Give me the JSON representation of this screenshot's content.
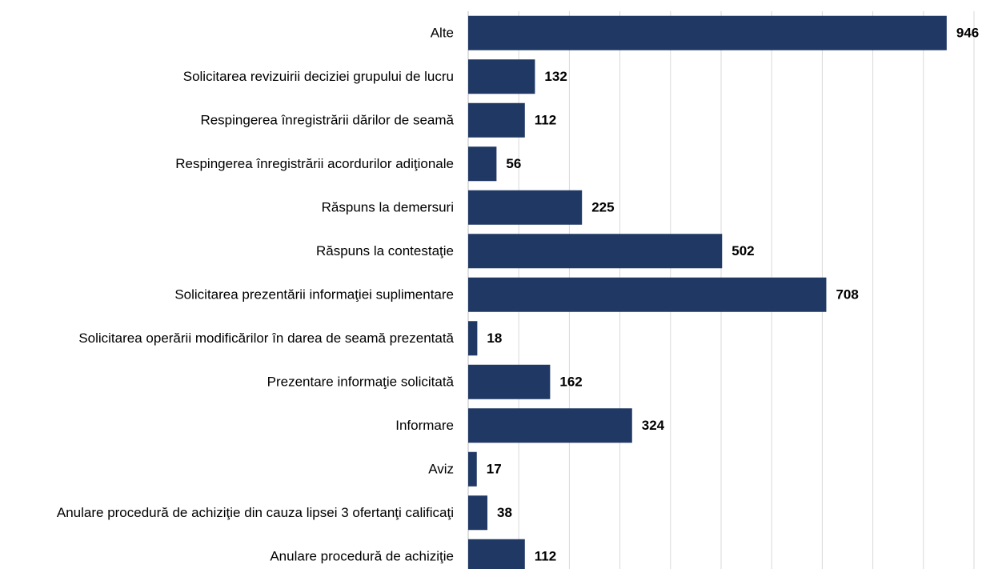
{
  "chart_data": {
    "type": "hbar",
    "categories": [
      "Alte",
      "Solicitarea revizuirii deciziei grupului de lucru",
      "Respingerea înregistrării dărilor de seamă",
      "Respingerea înregistrării acordurilor adiţionale",
      "Răspuns la demersuri",
      "Răspuns la contestaţie",
      "Solicitarea prezentării informaţiei suplimentare",
      "Solicitarea operării modificărilor în darea de seamă prezentată",
      "Prezentare informaţie solicitată",
      "Informare",
      "Aviz",
      "Anulare procedură de achiziţie din cauza lipsei 3 ofertanţi calificaţi",
      "Anulare procedură de achiziţie"
    ],
    "values": [
      946,
      132,
      112,
      56,
      225,
      502,
      708,
      18,
      162,
      324,
      17,
      38,
      112
    ],
    "color": "#203864",
    "xlim": [
      0,
      1000
    ],
    "xticks": [
      0,
      100,
      200,
      300,
      400,
      500,
      600,
      700,
      800,
      900,
      1000
    ],
    "grid": true
  }
}
